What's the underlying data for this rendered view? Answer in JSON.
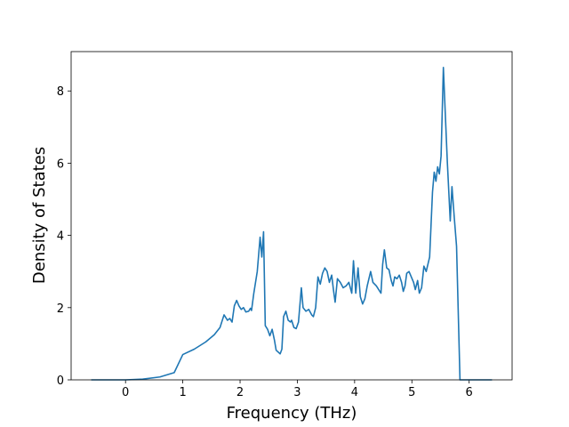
{
  "chart_data": {
    "type": "line",
    "x_label": "Frequency (THz)",
    "y_label": "Density of States",
    "color": "#1f77b4",
    "x": [
      -0.6,
      0,
      0.3,
      0.6,
      0.85,
      1.0,
      1.2,
      1.4,
      1.55,
      1.65,
      1.72,
      1.78,
      1.82,
      1.86,
      1.9,
      1.94,
      1.98,
      2.02,
      2.06,
      2.1,
      2.15,
      2.18,
      2.2,
      2.24,
      2.3,
      2.35,
      2.38,
      2.41,
      2.44,
      2.48,
      2.52,
      2.56,
      2.6,
      2.63,
      2.7,
      2.73,
      2.76,
      2.8,
      2.84,
      2.88,
      2.9,
      2.94,
      2.98,
      3.02,
      3.07,
      3.1,
      3.15,
      3.2,
      3.25,
      3.28,
      3.32,
      3.36,
      3.4,
      3.44,
      3.48,
      3.52,
      3.56,
      3.6,
      3.63,
      3.66,
      3.7,
      3.75,
      3.8,
      3.85,
      3.9,
      3.95,
      3.98,
      4.02,
      4.06,
      4.1,
      4.14,
      4.18,
      4.22,
      4.28,
      4.32,
      4.38,
      4.46,
      4.49,
      4.52,
      4.56,
      4.6,
      4.64,
      4.67,
      4.7,
      4.74,
      4.78,
      4.82,
      4.85,
      4.88,
      4.91,
      4.95,
      4.99,
      5.03,
      5.06,
      5.1,
      5.13,
      5.17,
      5.21,
      5.25,
      5.31,
      5.36,
      5.39,
      5.42,
      5.45,
      5.48,
      5.51,
      5.55,
      5.58,
      5.62,
      5.67,
      5.7,
      5.74,
      5.78,
      5.84,
      6.4
    ],
    "values": [
      0,
      0,
      0.02,
      0.08,
      0.2,
      0.7,
      0.85,
      1.05,
      1.25,
      1.45,
      1.8,
      1.65,
      1.7,
      1.6,
      2.05,
      2.2,
      2.05,
      1.95,
      2.0,
      1.88,
      1.9,
      1.98,
      1.92,
      2.4,
      3.0,
      3.95,
      3.4,
      4.1,
      1.5,
      1.4,
      1.22,
      1.4,
      1.1,
      0.82,
      0.72,
      0.85,
      1.75,
      1.9,
      1.65,
      1.6,
      1.65,
      1.45,
      1.42,
      1.6,
      2.55,
      2.0,
      1.9,
      1.95,
      1.8,
      1.75,
      2.0,
      2.85,
      2.65,
      2.95,
      3.1,
      3.0,
      2.7,
      2.9,
      2.5,
      2.15,
      2.8,
      2.7,
      2.55,
      2.6,
      2.7,
      2.4,
      3.3,
      2.4,
      3.1,
      2.3,
      2.1,
      2.25,
      2.6,
      3.0,
      2.7,
      2.6,
      2.4,
      3.2,
      3.6,
      3.1,
      3.05,
      2.75,
      2.6,
      2.85,
      2.8,
      2.9,
      2.7,
      2.45,
      2.6,
      2.95,
      3.0,
      2.85,
      2.7,
      2.5,
      2.75,
      2.4,
      2.55,
      3.15,
      3.0,
      3.4,
      5.2,
      5.75,
      5.5,
      5.9,
      5.7,
      6.2,
      8.65,
      7.5,
      6.0,
      4.4,
      5.35,
      4.5,
      3.7,
      0,
      0
    ],
    "xlim": [
      -0.95,
      6.75
    ],
    "xticks": [
      0,
      1,
      2,
      3,
      4,
      5,
      6
    ],
    "ylim": [
      0,
      9.09
    ],
    "yticks": [
      0,
      2,
      4,
      6,
      8
    ],
    "grid": false
  }
}
